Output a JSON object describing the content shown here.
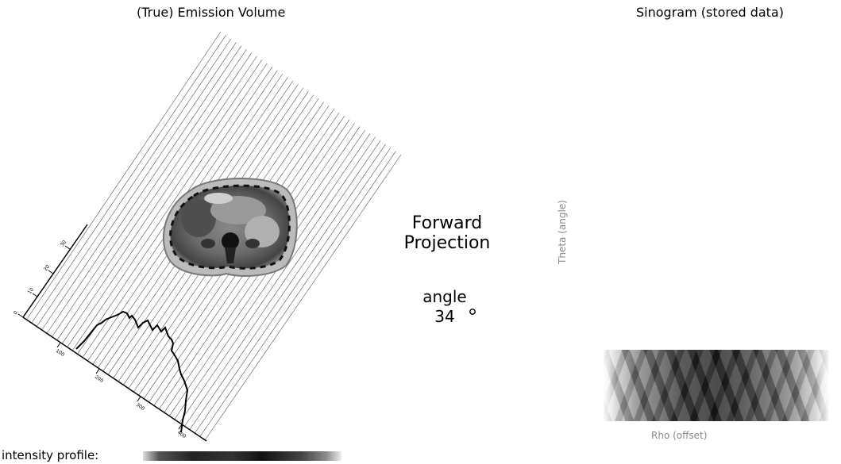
{
  "left_panel": {
    "title": "(True) Emission Volume"
  },
  "right_panel": {
    "title": "Sinogram (stored data)",
    "y_axis_label": "Theta (angle)",
    "x_axis_label": "Rho (offset)"
  },
  "center": {
    "line1": "Forward",
    "line2": "Projection",
    "angle_label": "angle",
    "angle_value": "34",
    "angle_unit_symbol": "degree-circle"
  },
  "footer": {
    "intensity_label": "intensity profile:"
  },
  "profile_axis": {
    "left_ticks": [
      "0",
      "10",
      "20",
      "30"
    ],
    "bottom_ticks": [
      "100",
      "200",
      "300",
      "400"
    ]
  },
  "colors": {
    "rays": "#555555",
    "profile_line": "#000000",
    "axis": "#000000"
  }
}
